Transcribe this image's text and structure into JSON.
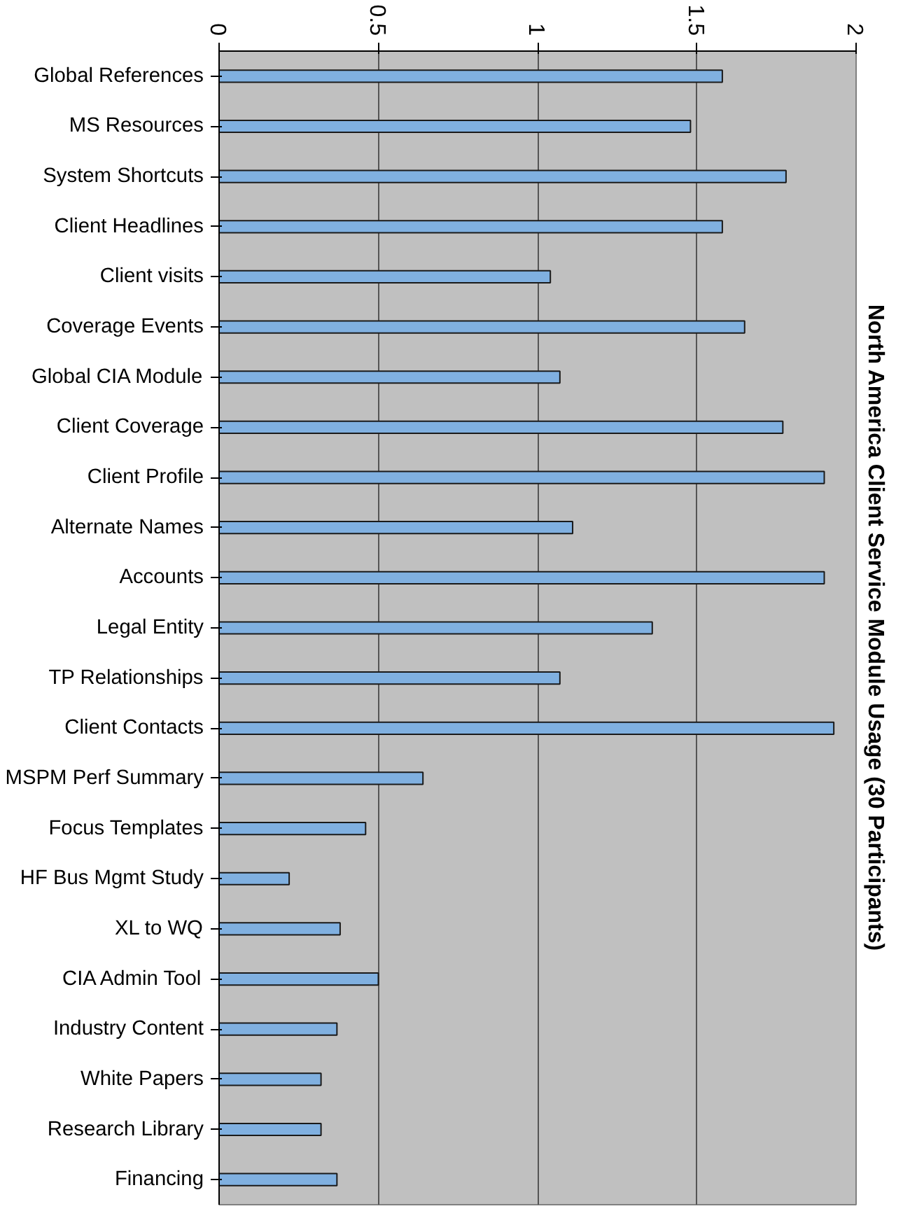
{
  "chart_data": {
    "type": "bar",
    "orientation": "horizontal",
    "title": "North America Client Service Module Usage (30 Participants)",
    "categories": [
      "Global References",
      "MS Resources",
      "System Shortcuts",
      "Client Headlines",
      "Client visits",
      "Coverage Events",
      "Global CIA Module",
      "Client Coverage",
      "Client Profile",
      "Alternate Names",
      "Accounts",
      "Legal Entity",
      "TP Relationships",
      "Client Contacts",
      "MSPM Perf Summary",
      "Focus Templates",
      "HF Bus Mgmt Study",
      "XL to WQ",
      "CIA Admin Tool",
      "Industry Content",
      "White Papers",
      "Research Library",
      "Financing"
    ],
    "values": [
      1.58,
      1.48,
      1.78,
      1.58,
      1.04,
      1.65,
      1.07,
      1.77,
      1.9,
      1.11,
      1.9,
      1.36,
      1.07,
      1.93,
      0.64,
      0.46,
      0.22,
      0.38,
      0.5,
      0.37,
      0.32,
      0.32,
      0.37
    ],
    "color": "#80b0e0",
    "xlim": [
      0,
      2
    ],
    "xticks": [
      0,
      0.5,
      1,
      1.5,
      2
    ],
    "grid": "x"
  }
}
